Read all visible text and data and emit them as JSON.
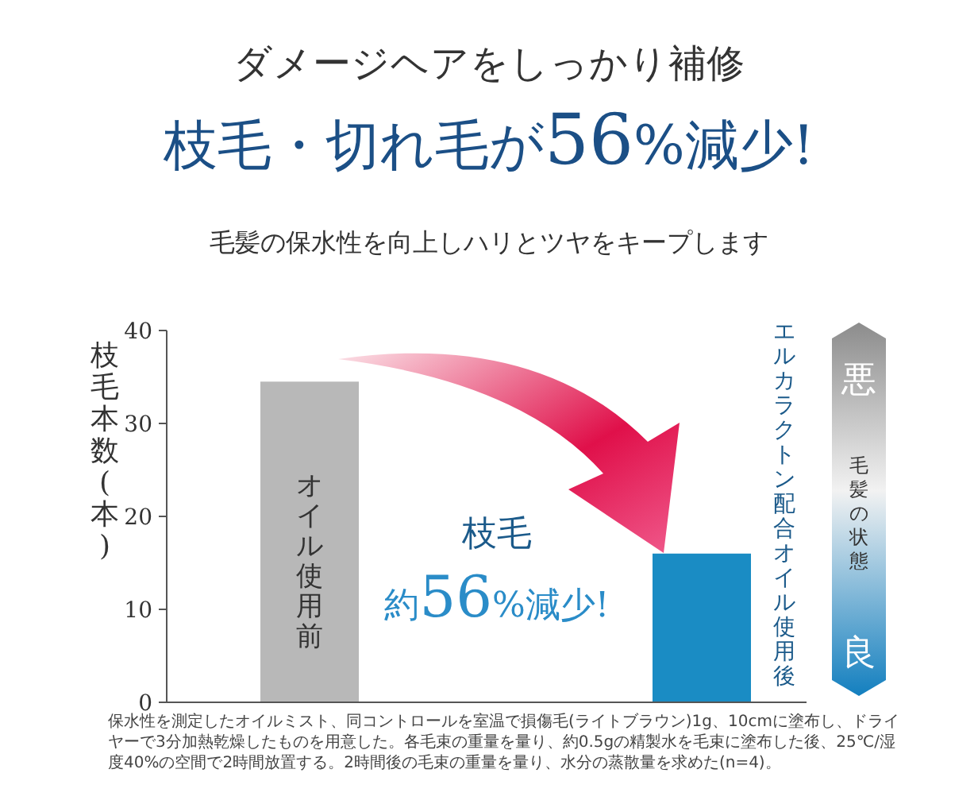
{
  "chart_data": {
    "type": "bar",
    "title": "ダメージヘアをしっかり補修",
    "subtitle": "枝毛・切れ毛が56%減少!",
    "ylabel": "枝毛本数(本)",
    "categories": [
      "オイル使用前",
      "エルカラクトン配合オイル使用後"
    ],
    "values": [
      34.5,
      16
    ],
    "colors": [
      "#b8b8b8",
      "#1a8cc4"
    ],
    "ylim": [
      0,
      40
    ],
    "yticks": [
      0,
      10,
      20,
      30,
      40
    ],
    "grid": false,
    "annotations": [
      "毛髪の保水性を向上しハリとツヤをキープします",
      "枝毛",
      "約56%減少!",
      "悪",
      "毛髪の状態",
      "良",
      "保水性を測定したオイルミスト、同コントロールを室温で損傷毛(ライトブラウン)1g、10cmに塗布し、ドライヤーで3分加熱乾燥したものを用意した。各毛束の重量を量り、約0.5gの精製水を毛束に塗布した後、25℃/湿度40%の空間で2時間放置する。2時間後の毛束の重量を量り、水分の蒸散量を求めた(n=4)。"
    ]
  }
}
